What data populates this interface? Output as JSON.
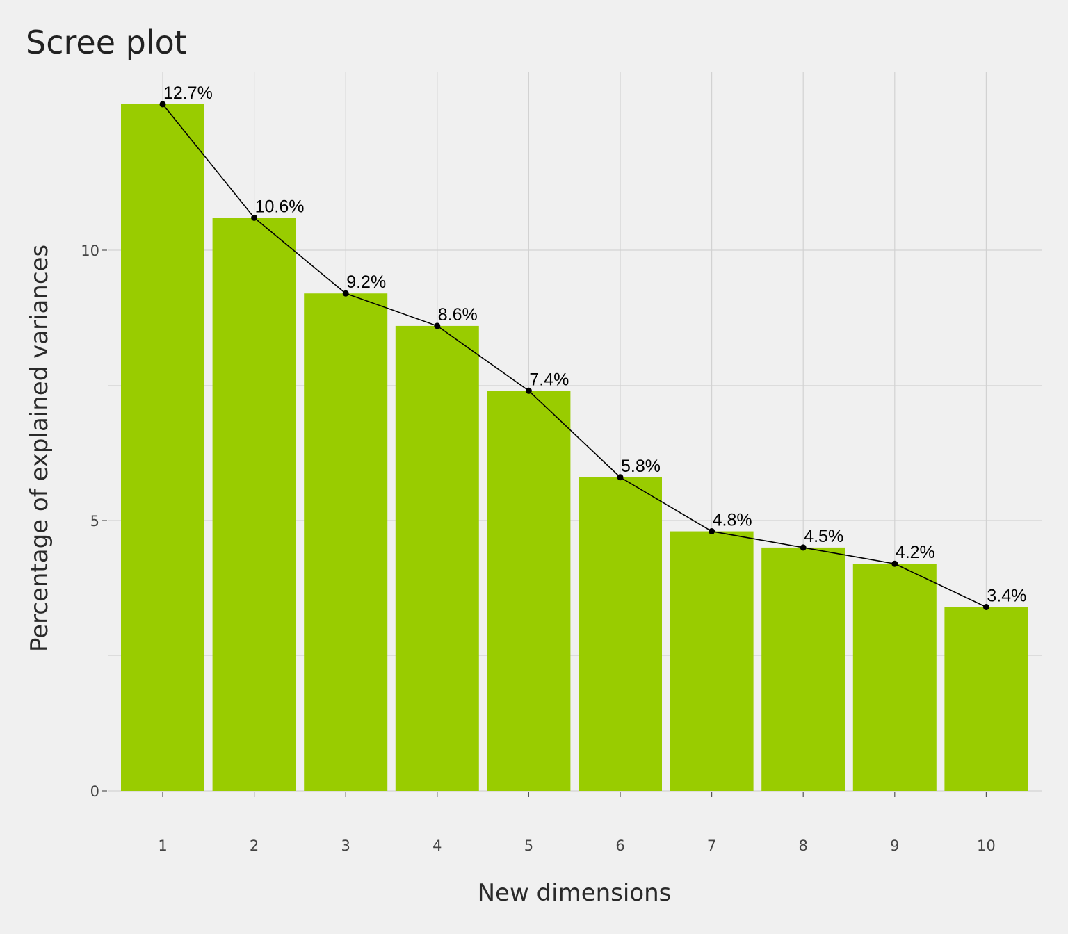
{
  "chart_data": {
    "type": "bar",
    "title": "Scree plot",
    "xlabel": "New dimensions",
    "ylabel": "Percentage of explained variances",
    "categories": [
      "1",
      "2",
      "3",
      "4",
      "5",
      "6",
      "7",
      "8",
      "9",
      "10"
    ],
    "values": [
      12.7,
      10.6,
      9.2,
      8.6,
      7.4,
      5.8,
      4.8,
      4.5,
      4.2,
      3.4
    ],
    "data_labels": [
      "12.7%",
      "10.6%",
      "9.2%",
      "8.6%",
      "7.4%",
      "5.8%",
      "4.8%",
      "4.5%",
      "4.2%",
      "3.4%"
    ],
    "yticks": [
      0,
      5,
      10
    ],
    "ytick_labels": [
      "0",
      "5",
      "10"
    ],
    "ylim": [
      0,
      12.7
    ],
    "grid": true,
    "legend": "none",
    "overlay_line": true,
    "colors": {
      "bar": "#99cc00",
      "line": "#000000",
      "point": "#000000",
      "background": "#f0f0f0",
      "grid": "#d2d2d2"
    }
  }
}
